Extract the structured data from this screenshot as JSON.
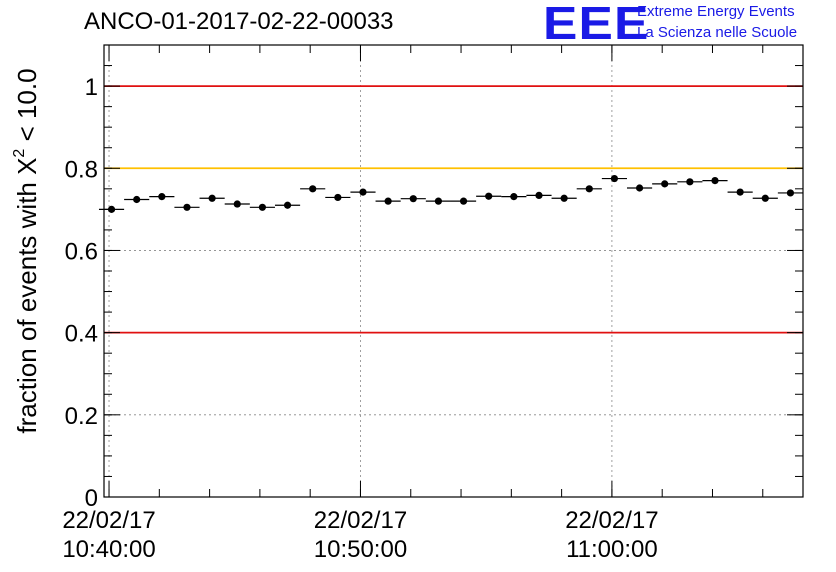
{
  "title": "ANCO-01-2017-02-22-00033",
  "logo": {
    "mark": "EEE",
    "line1": "Extreme Energy Events",
    "line2": "La Scienza nelle Scuole",
    "color": "#1a1ae6"
  },
  "chart_data": {
    "type": "scatter",
    "title": "ANCO-01-2017-02-22-00033",
    "ylabel_prefix": "fraction of events with ",
    "ylabel_symbol": "X",
    "ylabel_superscript": "2",
    "ylabel_suffix": " < 10.0",
    "xlabel": "",
    "ylim": [
      0,
      1.1
    ],
    "y_ticks": [
      "0",
      "0.2",
      "0.4",
      "0.6",
      "0.8",
      "1"
    ],
    "x_tick_labels": [
      {
        "date": "22/02/17",
        "time": "10:40:00",
        "minutes": 0
      },
      {
        "date": "22/02/17",
        "time": "10:50:00",
        "minutes": 10
      },
      {
        "date": "22/02/17",
        "time": "11:00:00",
        "minutes": 20
      }
    ],
    "x_range_minutes": [
      -0.2,
      27.6
    ],
    "reference_lines": [
      {
        "y": 1.0,
        "color": "#e01010"
      },
      {
        "y": 0.8,
        "color": "#ffc000"
      },
      {
        "y": 0.4,
        "color": "#e01010"
      }
    ],
    "grid": true,
    "series": [
      {
        "name": "fraction",
        "bin_width_minutes": 1,
        "x_minutes": [
          0.1,
          1.1,
          2.1,
          3.1,
          4.1,
          5.1,
          6.1,
          7.1,
          8.1,
          9.1,
          10.1,
          11.1,
          12.1,
          13.1,
          14.1,
          15.1,
          16.1,
          17.1,
          18.1,
          19.1,
          20.1,
          21.1,
          22.1,
          23.1,
          24.1,
          25.1,
          26.1,
          27.1
        ],
        "values": [
          0.7,
          0.724,
          0.731,
          0.705,
          0.727,
          0.713,
          0.705,
          0.71,
          0.75,
          0.729,
          0.742,
          0.72,
          0.726,
          0.72,
          0.72,
          0.732,
          0.731,
          0.734,
          0.727,
          0.75,
          0.775,
          0.752,
          0.762,
          0.767,
          0.77,
          0.742,
          0.727,
          0.74
        ]
      }
    ]
  }
}
